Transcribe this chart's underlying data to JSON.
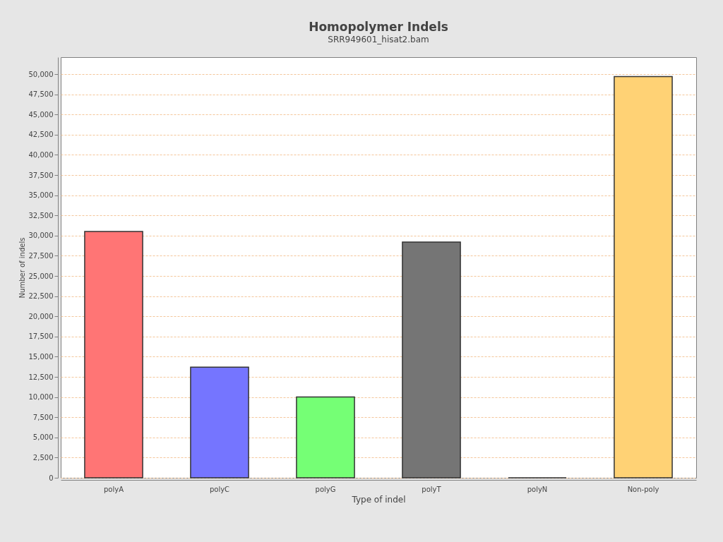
{
  "chart_data": {
    "type": "bar",
    "title": "Homopolymer Indels",
    "subtitle": "SRR949601_hisat2.bam",
    "xlabel": "Type of indel",
    "ylabel": "Number of indels",
    "categories": [
      "polyA",
      "polyC",
      "polyG",
      "polyT",
      "polyN",
      "Non-poly"
    ],
    "values": [
      30500,
      13700,
      10000,
      29200,
      0,
      49700
    ],
    "colors": [
      "#ff7575",
      "#7575ff",
      "#75ff75",
      "#757575",
      "#333333",
      "#ffd275"
    ],
    "ylim": [
      0,
      52100
    ],
    "yticks": [
      0,
      {
        "value": 2500,
        "label": "2,500"
      },
      {
        "value": 5000,
        "label": "5,000"
      },
      {
        "value": 7500,
        "label": "7,500"
      },
      {
        "value": 10000,
        "label": "10,000"
      },
      {
        "value": 12500,
        "label": "12,500"
      },
      {
        "value": 15000,
        "label": "15,000"
      },
      {
        "value": 17500,
        "label": "17,500"
      },
      {
        "value": 20000,
        "label": "20,000"
      },
      {
        "value": 22500,
        "label": "22,500"
      },
      {
        "value": 25000,
        "label": "25,000"
      },
      {
        "value": 27500,
        "label": "27,500"
      },
      {
        "value": 30000,
        "label": "30,000"
      },
      {
        "value": 32500,
        "label": "32,500"
      },
      {
        "value": 35000,
        "label": "35,000"
      },
      {
        "value": 37500,
        "label": "37,500"
      },
      {
        "value": 40000,
        "label": "40,000"
      },
      {
        "value": 42500,
        "label": "42,500"
      },
      {
        "value": 45000,
        "label": "45,000"
      },
      {
        "value": 47500,
        "label": "47,500"
      },
      {
        "value": 50000,
        "label": "50,000"
      }
    ],
    "grid": "y",
    "legend": false
  }
}
